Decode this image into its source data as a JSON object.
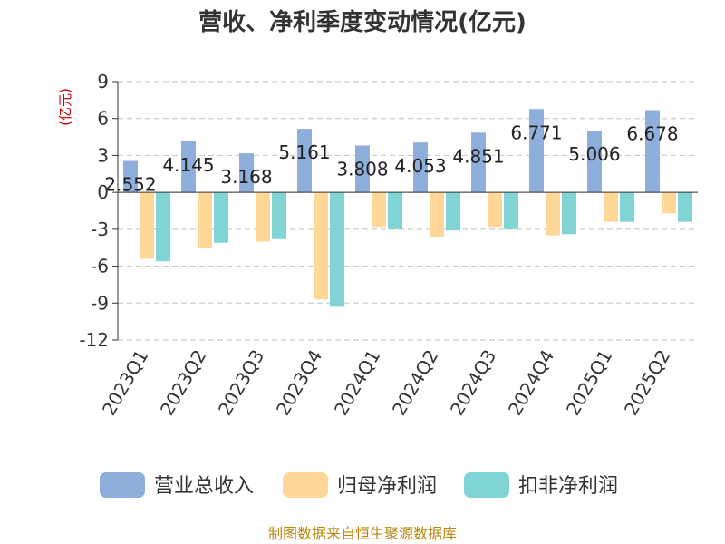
{
  "chart_data": {
    "type": "bar",
    "title": "营收、净利季度变动情况(亿元)",
    "unit_label": "(亿元)",
    "categories": [
      "2023Q1",
      "2023Q2",
      "2023Q3",
      "2023Q4",
      "2024Q1",
      "2024Q2",
      "2024Q3",
      "2024Q4",
      "2025Q1",
      "2025Q2"
    ],
    "series": [
      {
        "name": "营业总收入",
        "color": "#8eaedb",
        "values": [
          2.552,
          4.145,
          3.168,
          5.161,
          3.808,
          4.053,
          4.851,
          6.771,
          5.006,
          6.678
        ],
        "labels": [
          "2.552",
          "4.145",
          "3.168",
          "5.161",
          "3.808",
          "4.053",
          "4.851",
          "6.771",
          "5.006",
          "6.678"
        ]
      },
      {
        "name": "归母净利润",
        "color": "#ffd898",
        "values": [
          -5.4,
          -4.5,
          -4.0,
          -8.7,
          -2.8,
          -3.6,
          -2.8,
          -3.5,
          -2.4,
          -1.7
        ]
      },
      {
        "name": "扣非净利润",
        "color": "#80d4d4",
        "values": [
          -5.6,
          -4.1,
          -3.8,
          -9.3,
          -3.0,
          -3.1,
          -3.0,
          -3.4,
          -2.4,
          -2.4
        ]
      }
    ],
    "yticks": [
      "9",
      "6",
      "3",
      "0",
      "-3",
      "-6",
      "-9",
      "-12"
    ],
    "ylim": [
      -12,
      9
    ],
    "grid": true,
    "legend_position": "bottom",
    "source": "制图数据来自恒生聚源数据库"
  }
}
